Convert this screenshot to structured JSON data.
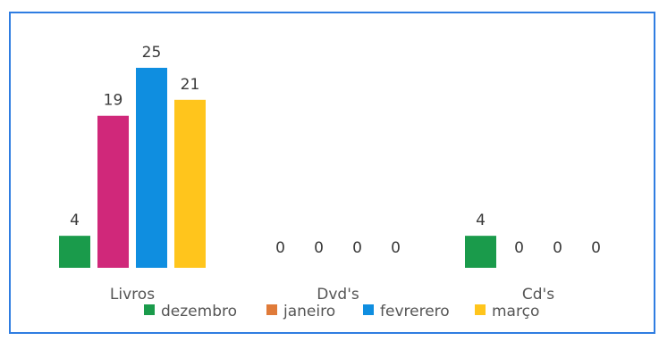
{
  "chart_data": {
    "type": "bar",
    "title": "",
    "xlabel": "",
    "ylabel": "",
    "categories": [
      "Livros",
      "Dvd's",
      "Cd's"
    ],
    "series": [
      {
        "name": "dezembro",
        "color": "#1a9b4b",
        "values": [
          4,
          0,
          4
        ]
      },
      {
        "name": "janeiro",
        "color": "#e07b39",
        "values": [
          0,
          0,
          0
        ]
      },
      {
        "name": "fevrerero",
        "color": "#0f8ee0",
        "values": [
          25,
          0,
          0
        ]
      },
      {
        "name": "março",
        "color": "#ffc51c",
        "values": [
          21,
          0,
          0
        ]
      }
    ],
    "data_labels": [
      [
        "4",
        "19",
        "25",
        "21"
      ],
      [
        "0",
        "0",
        "0",
        "0"
      ],
      [
        "4",
        "0",
        "0",
        "0"
      ]
    ],
    "overlay_bars": [
      {
        "category": "Livros",
        "slot": 1,
        "value": 19,
        "color": "#d0287a"
      }
    ],
    "ylim": [
      0,
      26
    ],
    "grid": false,
    "legend": "bottom"
  }
}
